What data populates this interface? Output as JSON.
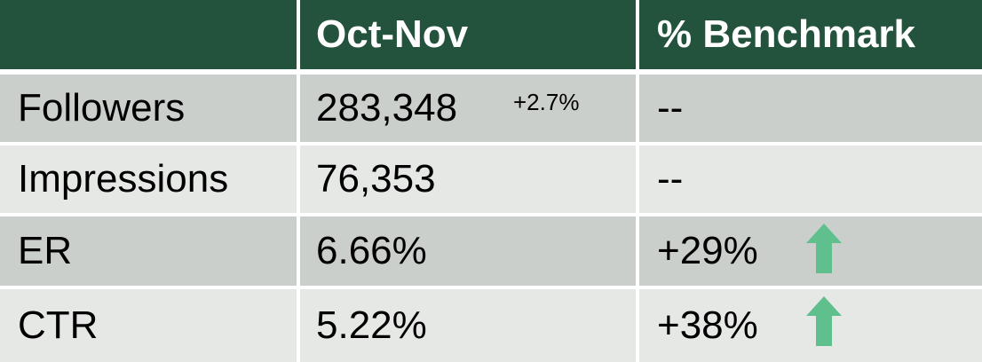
{
  "header": {
    "col1": "",
    "col2": "Oct-Nov",
    "col3": "% Benchmark"
  },
  "rows": [
    {
      "metric": "Followers",
      "value": "283,348",
      "change": "+2.7%",
      "benchmark": "--"
    },
    {
      "metric": "Impressions",
      "value": "76,353",
      "benchmark": "--"
    },
    {
      "metric": "ER",
      "value": "6.66%",
      "benchmark": "+29%",
      "trend_icon": "up-arrow"
    },
    {
      "metric": "CTR",
      "value": "5.22%",
      "benchmark": "+38%",
      "trend_icon": "up-arrow"
    }
  ],
  "colors": {
    "header_bg": "#24533d",
    "row_dark": "#cbcfcc",
    "row_light": "#e6e8e6",
    "arrow": "#5fc08e"
  }
}
